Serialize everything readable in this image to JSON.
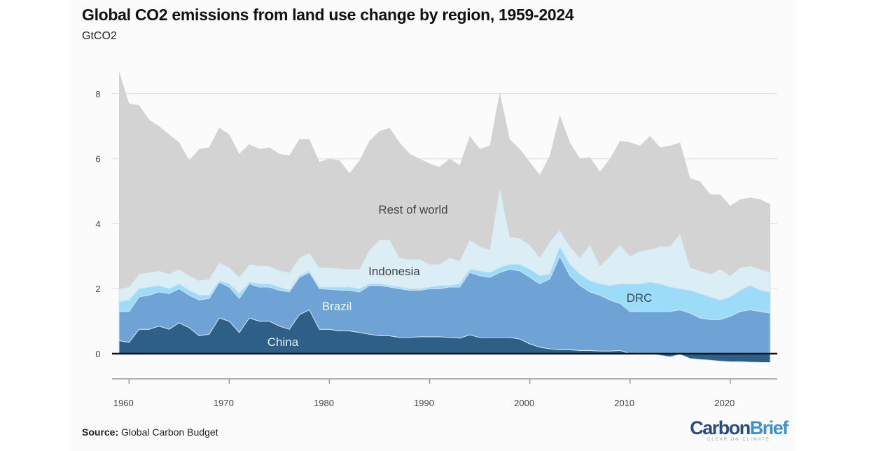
{
  "title": "Global CO2 emissions from land use change by region, 1959-2024",
  "subtitle": "GtCO2",
  "source_label": "Source:",
  "source_text": "Global Carbon Budget",
  "logo": {
    "name_a": "Carbon",
    "name_b": "Brief",
    "tagline": "CLEAR ON CLIMATE"
  },
  "chart_data": {
    "type": "area",
    "stacked": true,
    "title": "Global CO2 emissions from land use change by region, 1959-2024",
    "ylabel": "GtCO2",
    "xlabel": "",
    "ylim": [
      -0.8,
      8.7
    ],
    "xlim": [
      1959,
      2024
    ],
    "yticks": [
      0,
      2,
      4,
      6,
      8
    ],
    "xticks": [
      1960,
      1970,
      1980,
      1990,
      2000,
      2010,
      2020
    ],
    "grid": true,
    "legend": "inline labels",
    "x_start": 1959,
    "series": [
      {
        "name": "China",
        "color": "#2e5f86",
        "label_color": "#e8f0f8",
        "values": [
          0.4,
          0.35,
          0.75,
          0.75,
          0.85,
          0.75,
          0.95,
          0.8,
          0.55,
          0.6,
          1.1,
          1.0,
          0.65,
          1.1,
          1.0,
          1.0,
          0.85,
          0.75,
          1.2,
          1.35,
          0.75,
          0.75,
          0.7,
          0.7,
          0.65,
          0.6,
          0.55,
          0.55,
          0.5,
          0.5,
          0.52,
          0.52,
          0.52,
          0.5,
          0.48,
          0.58,
          0.5,
          0.5,
          0.5,
          0.5,
          0.45,
          0.3,
          0.2,
          0.15,
          0.12,
          0.12,
          0.1,
          0.1,
          0.08,
          0.08,
          0.1,
          0.0,
          0.02,
          0.0,
          -0.05,
          -0.1,
          -0.02,
          -0.15,
          -0.18,
          -0.2,
          -0.23,
          -0.25,
          -0.25,
          -0.26,
          -0.27,
          -0.27
        ]
      },
      {
        "name": "Brazil",
        "color": "#6fa3d6",
        "label_color": "#f2f7fc",
        "values": [
          0.9,
          0.95,
          1.0,
          1.05,
          1.05,
          1.1,
          1.05,
          1.0,
          1.1,
          1.1,
          1.1,
          1.05,
          1.05,
          1.05,
          1.05,
          1.05,
          1.1,
          1.15,
          1.15,
          1.15,
          1.25,
          1.23,
          1.26,
          1.25,
          1.25,
          1.5,
          1.55,
          1.5,
          1.5,
          1.45,
          1.43,
          1.48,
          1.48,
          1.55,
          1.57,
          1.92,
          1.9,
          1.85,
          2.0,
          2.1,
          2.1,
          2.05,
          1.95,
          2.15,
          2.88,
          2.28,
          2.0,
          1.8,
          1.72,
          1.57,
          1.45,
          1.3,
          1.28,
          1.3,
          1.3,
          1.3,
          1.35,
          1.25,
          1.1,
          1.05,
          1.05,
          1.15,
          1.3,
          1.35,
          1.3,
          1.25
        ]
      },
      {
        "name": "DRC",
        "color": "#9ddcf9",
        "label_color": "#3a4a5a",
        "values": [
          0.3,
          0.35,
          0.25,
          0.25,
          0.2,
          0.15,
          0.15,
          0.15,
          0.15,
          0.1,
          0.05,
          0.1,
          0.15,
          0.05,
          0.1,
          0.1,
          0.1,
          0.05,
          0.05,
          0.05,
          0.05,
          0.07,
          0.09,
          0.1,
          0.1,
          0.05,
          0.05,
          0.05,
          0.05,
          0.05,
          0.05,
          0.05,
          0.1,
          0.05,
          0.1,
          0.1,
          0.15,
          0.15,
          0.15,
          0.15,
          0.2,
          0.25,
          0.25,
          0.15,
          0.3,
          0.35,
          0.35,
          0.35,
          0.35,
          0.45,
          0.6,
          0.85,
          0.85,
          0.9,
          0.85,
          0.75,
          0.65,
          0.7,
          0.75,
          0.7,
          0.6,
          0.6,
          0.65,
          0.75,
          0.65,
          0.65
        ]
      },
      {
        "name": "Indonesia",
        "color": "#dbeef5",
        "label_color": "#444",
        "values": [
          0.4,
          0.4,
          0.45,
          0.45,
          0.45,
          0.45,
          0.45,
          0.45,
          0.45,
          0.5,
          0.55,
          0.5,
          0.5,
          0.55,
          0.55,
          0.55,
          0.5,
          0.55,
          0.55,
          0.55,
          0.6,
          0.6,
          0.57,
          0.55,
          0.6,
          1.05,
          1.35,
          1.4,
          0.9,
          0.9,
          0.9,
          0.7,
          0.65,
          0.85,
          0.7,
          0.9,
          0.75,
          0.7,
          2.45,
          0.85,
          0.8,
          0.75,
          0.55,
          1.0,
          0.5,
          0.55,
          0.5,
          1.1,
          0.55,
          0.9,
          1.2,
          0.85,
          1.0,
          1.0,
          1.15,
          1.25,
          1.7,
          0.7,
          0.7,
          0.7,
          0.95,
          0.65,
          0.7,
          0.6,
          0.65,
          0.6
        ]
      },
      {
        "name": "Rest of world",
        "color": "#d3d3d3",
        "label_color": "#444",
        "values": [
          6.7,
          5.65,
          5.2,
          4.7,
          4.45,
          4.3,
          3.9,
          3.55,
          4.05,
          4.05,
          4.15,
          4.1,
          3.8,
          3.7,
          3.6,
          3.65,
          3.6,
          3.6,
          3.65,
          3.5,
          3.25,
          3.35,
          3.33,
          2.95,
          3.35,
          3.35,
          3.35,
          3.45,
          3.55,
          3.25,
          3.1,
          3.1,
          3.0,
          3.05,
          2.95,
          3.2,
          3.0,
          3.2,
          2.95,
          3.0,
          2.75,
          2.55,
          2.55,
          2.65,
          3.55,
          3.2,
          3.05,
          2.7,
          2.9,
          3.0,
          3.2,
          3.5,
          3.25,
          3.5,
          3.05,
          3.1,
          2.8,
          2.75,
          2.75,
          2.45,
          2.3,
          2.15,
          2.1,
          2.1,
          2.15,
          2.1
        ]
      }
    ]
  }
}
